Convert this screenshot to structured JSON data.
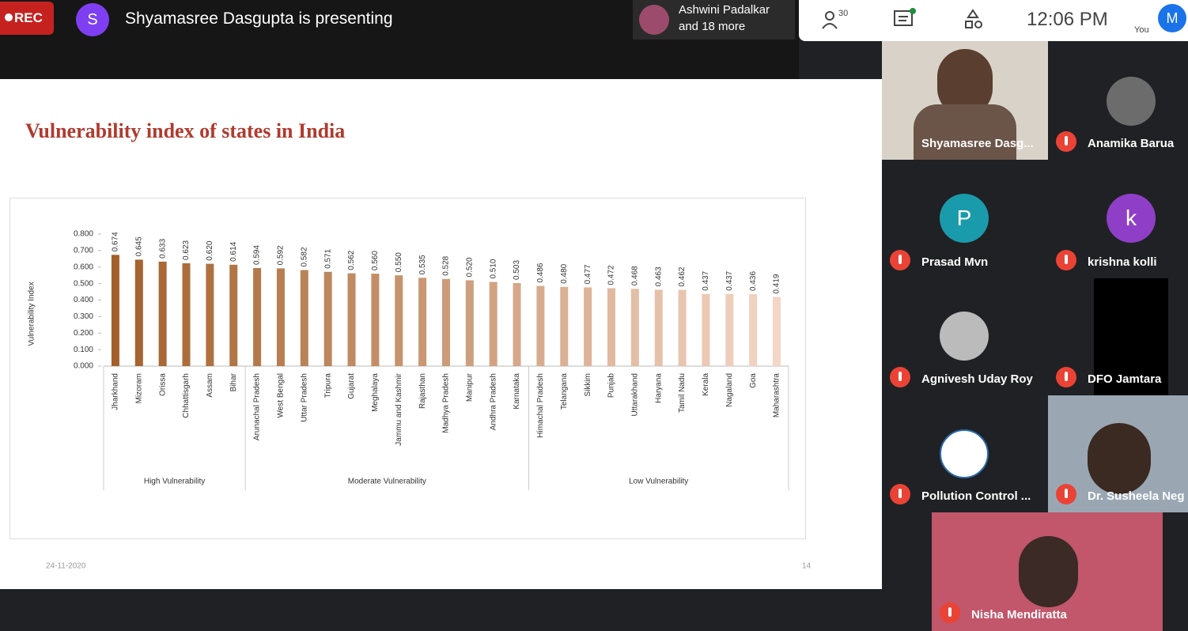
{
  "header": {
    "rec": "REC",
    "presenter_avatar": "S",
    "presenting": "Shyamasree Dasgupta is presenting",
    "preview_name": "Ashwini Padalkar",
    "preview_more": "and 18 more",
    "people_count": "30",
    "time": "12:06 PM",
    "you_label": "You",
    "you_avatar": "M"
  },
  "slide": {
    "date": "24-11-2020",
    "page": "14"
  },
  "chart_data": {
    "type": "bar",
    "title": "Vulnerability index of states in India",
    "y_label": "Vulnerability Index",
    "ylim": [
      0,
      0.8
    ],
    "yticks": [
      {
        "value": 0,
        "label": "0.000"
      },
      {
        "value": 0.1,
        "label": "0.100"
      },
      {
        "value": 0.2,
        "label": "0.200"
      },
      {
        "value": 0.3,
        "label": "0.300"
      },
      {
        "value": 0.4,
        "label": "0.400"
      },
      {
        "value": 0.5,
        "label": "0.500"
      },
      {
        "value": 0.6,
        "label": "0.600"
      },
      {
        "value": 0.7,
        "label": "0.700"
      },
      {
        "value": 0.8,
        "label": "0.800"
      }
    ],
    "color_range": [
      "#a3602a",
      "#f4d6c6"
    ],
    "groups": [
      {
        "name": "High Vulnerability",
        "categories": [
          "Jharkhand",
          "Mizoram",
          "Orissa",
          "Chhattisgarh",
          "Assam",
          "Bihar"
        ],
        "values": [
          0.674,
          0.645,
          0.633,
          0.623,
          0.62,
          0.614
        ],
        "value_labels": [
          "0.674",
          "0.645",
          "0.633",
          "0.623",
          "0.620",
          "0.614"
        ]
      },
      {
        "name": "Moderate Vulnerability",
        "categories": [
          "Arunachal Pradesh",
          "West Bengal",
          "Uttar Pradesh",
          "Tripura",
          "Gujarat",
          "Meghalaya",
          "Jammu and Kashmir",
          "Rajasthan",
          "Madhya Pradesh",
          "Manipur",
          "Andhra Pradesh",
          "Karnataka"
        ],
        "values": [
          0.594,
          0.592,
          0.582,
          0.571,
          0.562,
          0.56,
          0.55,
          0.535,
          0.528,
          0.52,
          0.51,
          0.503
        ],
        "value_labels": [
          "0.594",
          "0.592",
          "0.582",
          "0.571",
          "0.562",
          "0.560",
          "0.550",
          "0.535",
          "0.528",
          "0.520",
          "0.510",
          "0.503"
        ]
      },
      {
        "name": "Low Vulnerability",
        "categories": [
          "Himachal Pradesh",
          "Telangana",
          "Sikkim",
          "Punjab",
          "Uttarakhand",
          "Haryana",
          "Tamil Nadu",
          "Kerala",
          "Nagaland",
          "Goa",
          "Maharashtra"
        ],
        "values": [
          0.486,
          0.48,
          0.477,
          0.472,
          0.468,
          0.463,
          0.462,
          0.437,
          0.437,
          0.436,
          0.419
        ],
        "value_labels": [
          "0.486",
          "0.480",
          "0.477",
          "0.472",
          "0.468",
          "0.463",
          "0.462",
          "0.437",
          "0.437",
          "0.436",
          "0.419"
        ]
      }
    ]
  },
  "tiles": [
    "Shyamasree Dasg...",
    "Anamika Barua",
    "Prasad Mvn",
    "krishna kolli",
    "Agnivesh Uday Roy",
    "DFO Jamtara",
    "Pollution Control ...",
    "Dr. Susheela Neg",
    "Nisha Mendiratta"
  ],
  "avatars": {
    "prasad": "P",
    "krishna": "k"
  }
}
